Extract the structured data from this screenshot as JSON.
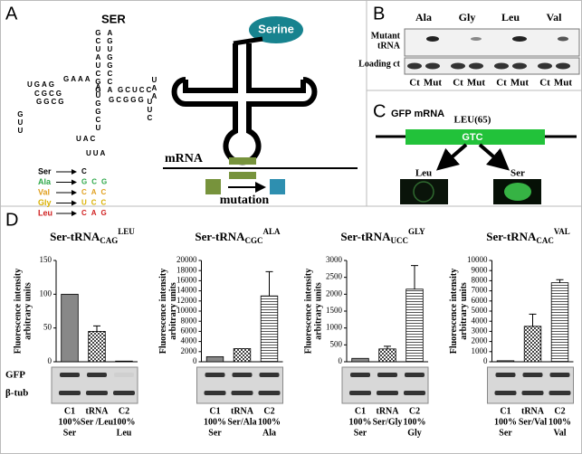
{
  "panel_labels": [
    "A",
    "B",
    "C",
    "D"
  ],
  "panel_a": {
    "trna_name": "SER",
    "sequence": [
      "GCUAUCGG",
      "AGUGGCCA",
      "UGAG",
      "CGCG",
      "GGCG",
      "GUU",
      "GCUCC",
      "GCGGG",
      "UUC",
      "UAA",
      "AUGGCU",
      "UAC",
      "UUA",
      "GAAA"
    ],
    "amino_acid": "Serine",
    "mrna": "mRNA",
    "mutation": "mutation",
    "anticodons": [
      {
        "name": "Ser",
        "codon": "C",
        "color": "#000000"
      },
      {
        "name": "Ala",
        "codon": "GCG",
        "color": "#2ea84a"
      },
      {
        "name": "Val",
        "codon": "CAC",
        "color": "#e0a020"
      },
      {
        "name": "Gly",
        "codon": "UCC",
        "color": "#d9b000"
      },
      {
        "name": "Leu",
        "codon": "CAG",
        "color": "#d02020"
      }
    ]
  },
  "panel_b": {
    "lanes": [
      "Ala",
      "Gly",
      "Leu",
      "Val"
    ],
    "rows": [
      [
        "Mutant",
        "tRNA"
      ],
      [
        "Loading ct"
      ]
    ],
    "lane_labels": [
      "Ct",
      "Mut",
      "Ct",
      "Mut",
      "Ct",
      "Mut",
      "Ct",
      "Mut"
    ]
  },
  "panel_c": {
    "title": "GFP mRNA",
    "position": "LEU(65)",
    "codon": "GTC",
    "outcomes": [
      "Leu",
      "Ser"
    ]
  },
  "chart_data": [
    {
      "type": "bar",
      "title": {
        "text": "Ser-tRNA",
        "sub": "CAG",
        "sup": "LEU"
      },
      "ylabel": [
        "Fluorescence intensity",
        "arbitrary units"
      ],
      "categories": [
        [
          "C1",
          "100%",
          "Ser"
        ],
        [
          "tRNA",
          "Ser /Leu"
        ],
        [
          "C2",
          "100%",
          "Leu"
        ]
      ],
      "values": [
        100,
        45,
        1
      ],
      "errors": [
        null,
        8,
        null
      ],
      "patterns": [
        "solid",
        "checker",
        "hstripe"
      ],
      "blot_labels": [
        "GFP",
        "β-tub"
      ],
      "ylim": [
        0,
        150
      ],
      "yticks": [
        0,
        50,
        100,
        150
      ]
    },
    {
      "type": "bar",
      "title": {
        "text": "Ser-tRNA",
        "sub": "CGC",
        "sup": "ALA"
      },
      "ylabel": [
        "Fluorescence intensity",
        "arbitrary units"
      ],
      "categories": [
        [
          "C1",
          "100%",
          "Ser"
        ],
        [
          "tRNA",
          "Ser/Ala"
        ],
        [
          "C2",
          "100%",
          "Ala"
        ]
      ],
      "values": [
        1000,
        2600,
        13000
      ],
      "errors": [
        null,
        null,
        4800
      ],
      "patterns": [
        "solid",
        "checker",
        "hstripe"
      ],
      "ylim": [
        0,
        20000
      ],
      "yticks": [
        0,
        2000,
        4000,
        6000,
        8000,
        10000,
        12000,
        14000,
        16000,
        18000,
        20000
      ]
    },
    {
      "type": "bar",
      "title": {
        "text": "Ser-tRNA",
        "sub": "UCC",
        "sup": "GLY"
      },
      "ylabel": [
        "Fluorescence intensity",
        "arbitrary units"
      ],
      "categories": [
        [
          "C1",
          "100%",
          "Ser"
        ],
        [
          "tRNA",
          "Ser/Gly"
        ],
        [
          "C2",
          "100%",
          "Gly"
        ]
      ],
      "values": [
        100,
        380,
        2150
      ],
      "errors": [
        null,
        80,
        700
      ],
      "patterns": [
        "solid",
        "checker",
        "hstripe"
      ],
      "ylim": [
        0,
        3000
      ],
      "yticks": [
        0,
        500,
        1000,
        1500,
        2000,
        2500,
        3000
      ]
    },
    {
      "type": "bar",
      "title": {
        "text": "Ser-tRNA",
        "sub": "CAC",
        "sup": "VAL"
      },
      "ylabel": [
        "Fluorescence intensity",
        "arbitrary units"
      ],
      "categories": [
        [
          "C1",
          "100%",
          "Ser"
        ],
        [
          "tRNA",
          "Ser/Val"
        ],
        [
          "C2",
          "100%",
          "Val"
        ]
      ],
      "values": [
        100,
        3500,
        7800
      ],
      "errors": [
        null,
        1200,
        300
      ],
      "patterns": [
        "solid",
        "checker",
        "hstripe"
      ],
      "ylim": [
        0,
        10000
      ],
      "yticks": [
        0,
        1000,
        2000,
        3000,
        4000,
        5000,
        6000,
        7000,
        8000,
        9000,
        10000
      ]
    }
  ]
}
